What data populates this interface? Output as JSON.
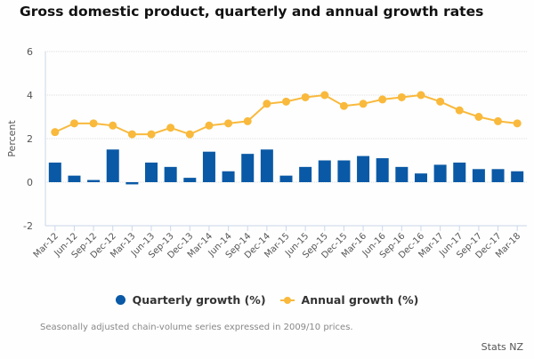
{
  "chart_data": {
    "type": "bar+line",
    "title": "Gross domestic product, quarterly and annual growth rates",
    "xlabel": "",
    "ylabel": "Percent",
    "ylim": [
      -2,
      6
    ],
    "yticks": [
      -2,
      0,
      2,
      4,
      6
    ],
    "grid": true,
    "legend_position": "bottom",
    "categories": [
      "Mar-12",
      "Jun-12",
      "Sep-12",
      "Dec-12",
      "Mar-13",
      "Jun-13",
      "Sep-13",
      "Dec-13",
      "Mar-14",
      "Jun-14",
      "Sep-14",
      "Dec-14",
      "Mar-15",
      "Jun-15",
      "Sep-15",
      "Dec-15",
      "Mar-16",
      "Jun-16",
      "Sep-16",
      "Dec-16",
      "Mar-17",
      "Jun-17",
      "Sep-17",
      "Dec-17",
      "Mar-18"
    ],
    "series": [
      {
        "name": "Quarterly growth (%)",
        "type": "bar",
        "color": "#0a59a6",
        "values": [
          0.9,
          0.3,
          0.1,
          1.5,
          -0.1,
          0.9,
          0.7,
          0.2,
          1.4,
          0.5,
          1.3,
          1.5,
          0.3,
          0.7,
          1.0,
          1.0,
          1.2,
          1.1,
          0.7,
          0.4,
          0.8,
          0.9,
          0.6,
          0.6,
          0.5
        ]
      },
      {
        "name": "Annual growth (%)",
        "type": "line",
        "color": "#f9b93c",
        "values": [
          2.3,
          2.7,
          2.7,
          2.6,
          2.2,
          2.2,
          2.5,
          2.2,
          2.6,
          2.7,
          2.8,
          3.6,
          3.7,
          3.9,
          4.0,
          3.5,
          3.6,
          3.8,
          3.9,
          4.0,
          3.7,
          3.3,
          3.0,
          2.8,
          2.7
        ]
      }
    ],
    "note": "Seasonally adjusted chain-volume series expressed in 2009/10 prices.",
    "source": "Stats NZ"
  }
}
